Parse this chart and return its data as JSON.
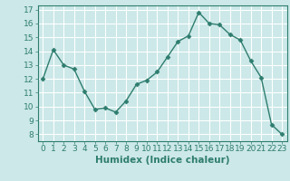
{
  "x": [
    0,
    1,
    2,
    3,
    4,
    5,
    6,
    7,
    8,
    9,
    10,
    11,
    12,
    13,
    14,
    15,
    16,
    17,
    18,
    19,
    20,
    21,
    22,
    23
  ],
  "y": [
    12.0,
    14.1,
    13.0,
    12.7,
    11.1,
    9.8,
    9.9,
    9.6,
    10.4,
    11.6,
    11.9,
    12.5,
    13.6,
    14.7,
    15.1,
    16.8,
    16.0,
    15.9,
    15.2,
    14.8,
    13.3,
    12.1,
    8.7,
    8.0
  ],
  "line_color": "#2e7d6e",
  "marker": "D",
  "marker_size": 2.5,
  "bg_color": "#cce8e8",
  "grid_color": "#ffffff",
  "xlabel": "Humidex (Indice chaleur)",
  "ylim_min": 7.5,
  "ylim_max": 17.3,
  "xlim_min": -0.5,
  "xlim_max": 23.5,
  "yticks": [
    8,
    9,
    10,
    11,
    12,
    13,
    14,
    15,
    16,
    17
  ],
  "xticks": [
    0,
    1,
    2,
    3,
    4,
    5,
    6,
    7,
    8,
    9,
    10,
    11,
    12,
    13,
    14,
    15,
    16,
    17,
    18,
    19,
    20,
    21,
    22,
    23
  ],
  "tick_color": "#2e7d6e",
  "label_color": "#2e7d6e",
  "xlabel_fontsize": 7.5,
  "tick_fontsize": 6.5,
  "linewidth": 1.0
}
